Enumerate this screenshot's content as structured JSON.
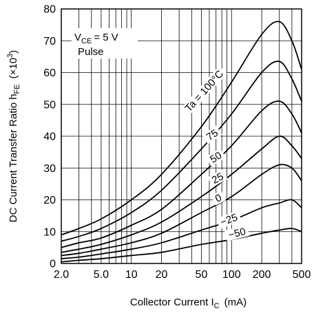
{
  "chart_data": {
    "type": "line",
    "x_scale": "log",
    "xlim": [
      2.0,
      500
    ],
    "ylim": [
      0,
      80
    ],
    "xlabel": "Collector Current  I",
    "xlabel_sub": "C",
    "xlabel_unit": "(mA)",
    "ylabel": "DC Current Transfer Ratio h",
    "ylabel_sub": "FE",
    "ylabel_unit": "(×10",
    "ylabel_sup": "3",
    "ylabel_close": ")",
    "x_tick_labels": [
      {
        "x": 2,
        "label": "2.0"
      },
      {
        "x": 5,
        "label": "5.0"
      },
      {
        "x": 10,
        "label": "10"
      },
      {
        "x": 20,
        "label": "20"
      },
      {
        "x": 50,
        "label": "50"
      },
      {
        "x": 100,
        "label": "100"
      },
      {
        "x": 200,
        "label": "200"
      },
      {
        "x": 500,
        "label": "500"
      }
    ],
    "y_ticks": [
      0,
      10,
      20,
      30,
      40,
      50,
      60,
      70,
      80
    ],
    "condition_vce": "V",
    "condition_vce_sub": "CE",
    "condition_vce_val": "= 5 V",
    "condition_pulse": "Pulse",
    "series": [
      {
        "name": "Ta = 100°C",
        "x": [
          2,
          3,
          5,
          10,
          20,
          50,
          100,
          200,
          300,
          400,
          500
        ],
        "y": [
          9,
          11,
          14,
          20,
          28,
          43,
          57,
          72,
          76,
          70,
          61
        ]
      },
      {
        "name": "75",
        "x": [
          2,
          3,
          5,
          10,
          20,
          50,
          100,
          200,
          300,
          400,
          500
        ],
        "y": [
          7,
          8.5,
          11,
          16,
          23,
          36,
          47,
          60,
          63.5,
          58,
          51
        ]
      },
      {
        "name": "50",
        "x": [
          2,
          3,
          5,
          10,
          20,
          50,
          100,
          200,
          300,
          400,
          500
        ],
        "y": [
          5,
          6.5,
          8,
          12,
          17,
          28,
          37,
          48,
          51,
          47,
          41
        ]
      },
      {
        "name": "25",
        "x": [
          2,
          3,
          5,
          10,
          20,
          50,
          100,
          200,
          300,
          400,
          500
        ],
        "y": [
          3.5,
          4.5,
          6,
          9,
          13,
          21,
          28,
          36,
          40,
          37,
          33
        ]
      },
      {
        "name": "0",
        "x": [
          2,
          3,
          5,
          10,
          20,
          50,
          100,
          200,
          300,
          400,
          500
        ],
        "y": [
          2.5,
          3.2,
          4.5,
          6.5,
          9.5,
          16,
          21,
          28,
          31,
          30,
          26
        ]
      },
      {
        "name": "−25",
        "x": [
          2,
          3,
          5,
          10,
          20,
          50,
          100,
          200,
          300,
          400,
          500
        ],
        "y": [
          1.5,
          2,
          3,
          4.5,
          6.5,
          10.5,
          13.5,
          17.5,
          19,
          20,
          17.5
        ]
      },
      {
        "name": "−50",
        "x": [
          2,
          3,
          5,
          10,
          20,
          50,
          100,
          200,
          300,
          400,
          500
        ],
        "y": [
          0.5,
          1,
          1.5,
          2.5,
          3.5,
          6,
          7.5,
          9.5,
          10.5,
          11,
          10
        ]
      }
    ]
  }
}
